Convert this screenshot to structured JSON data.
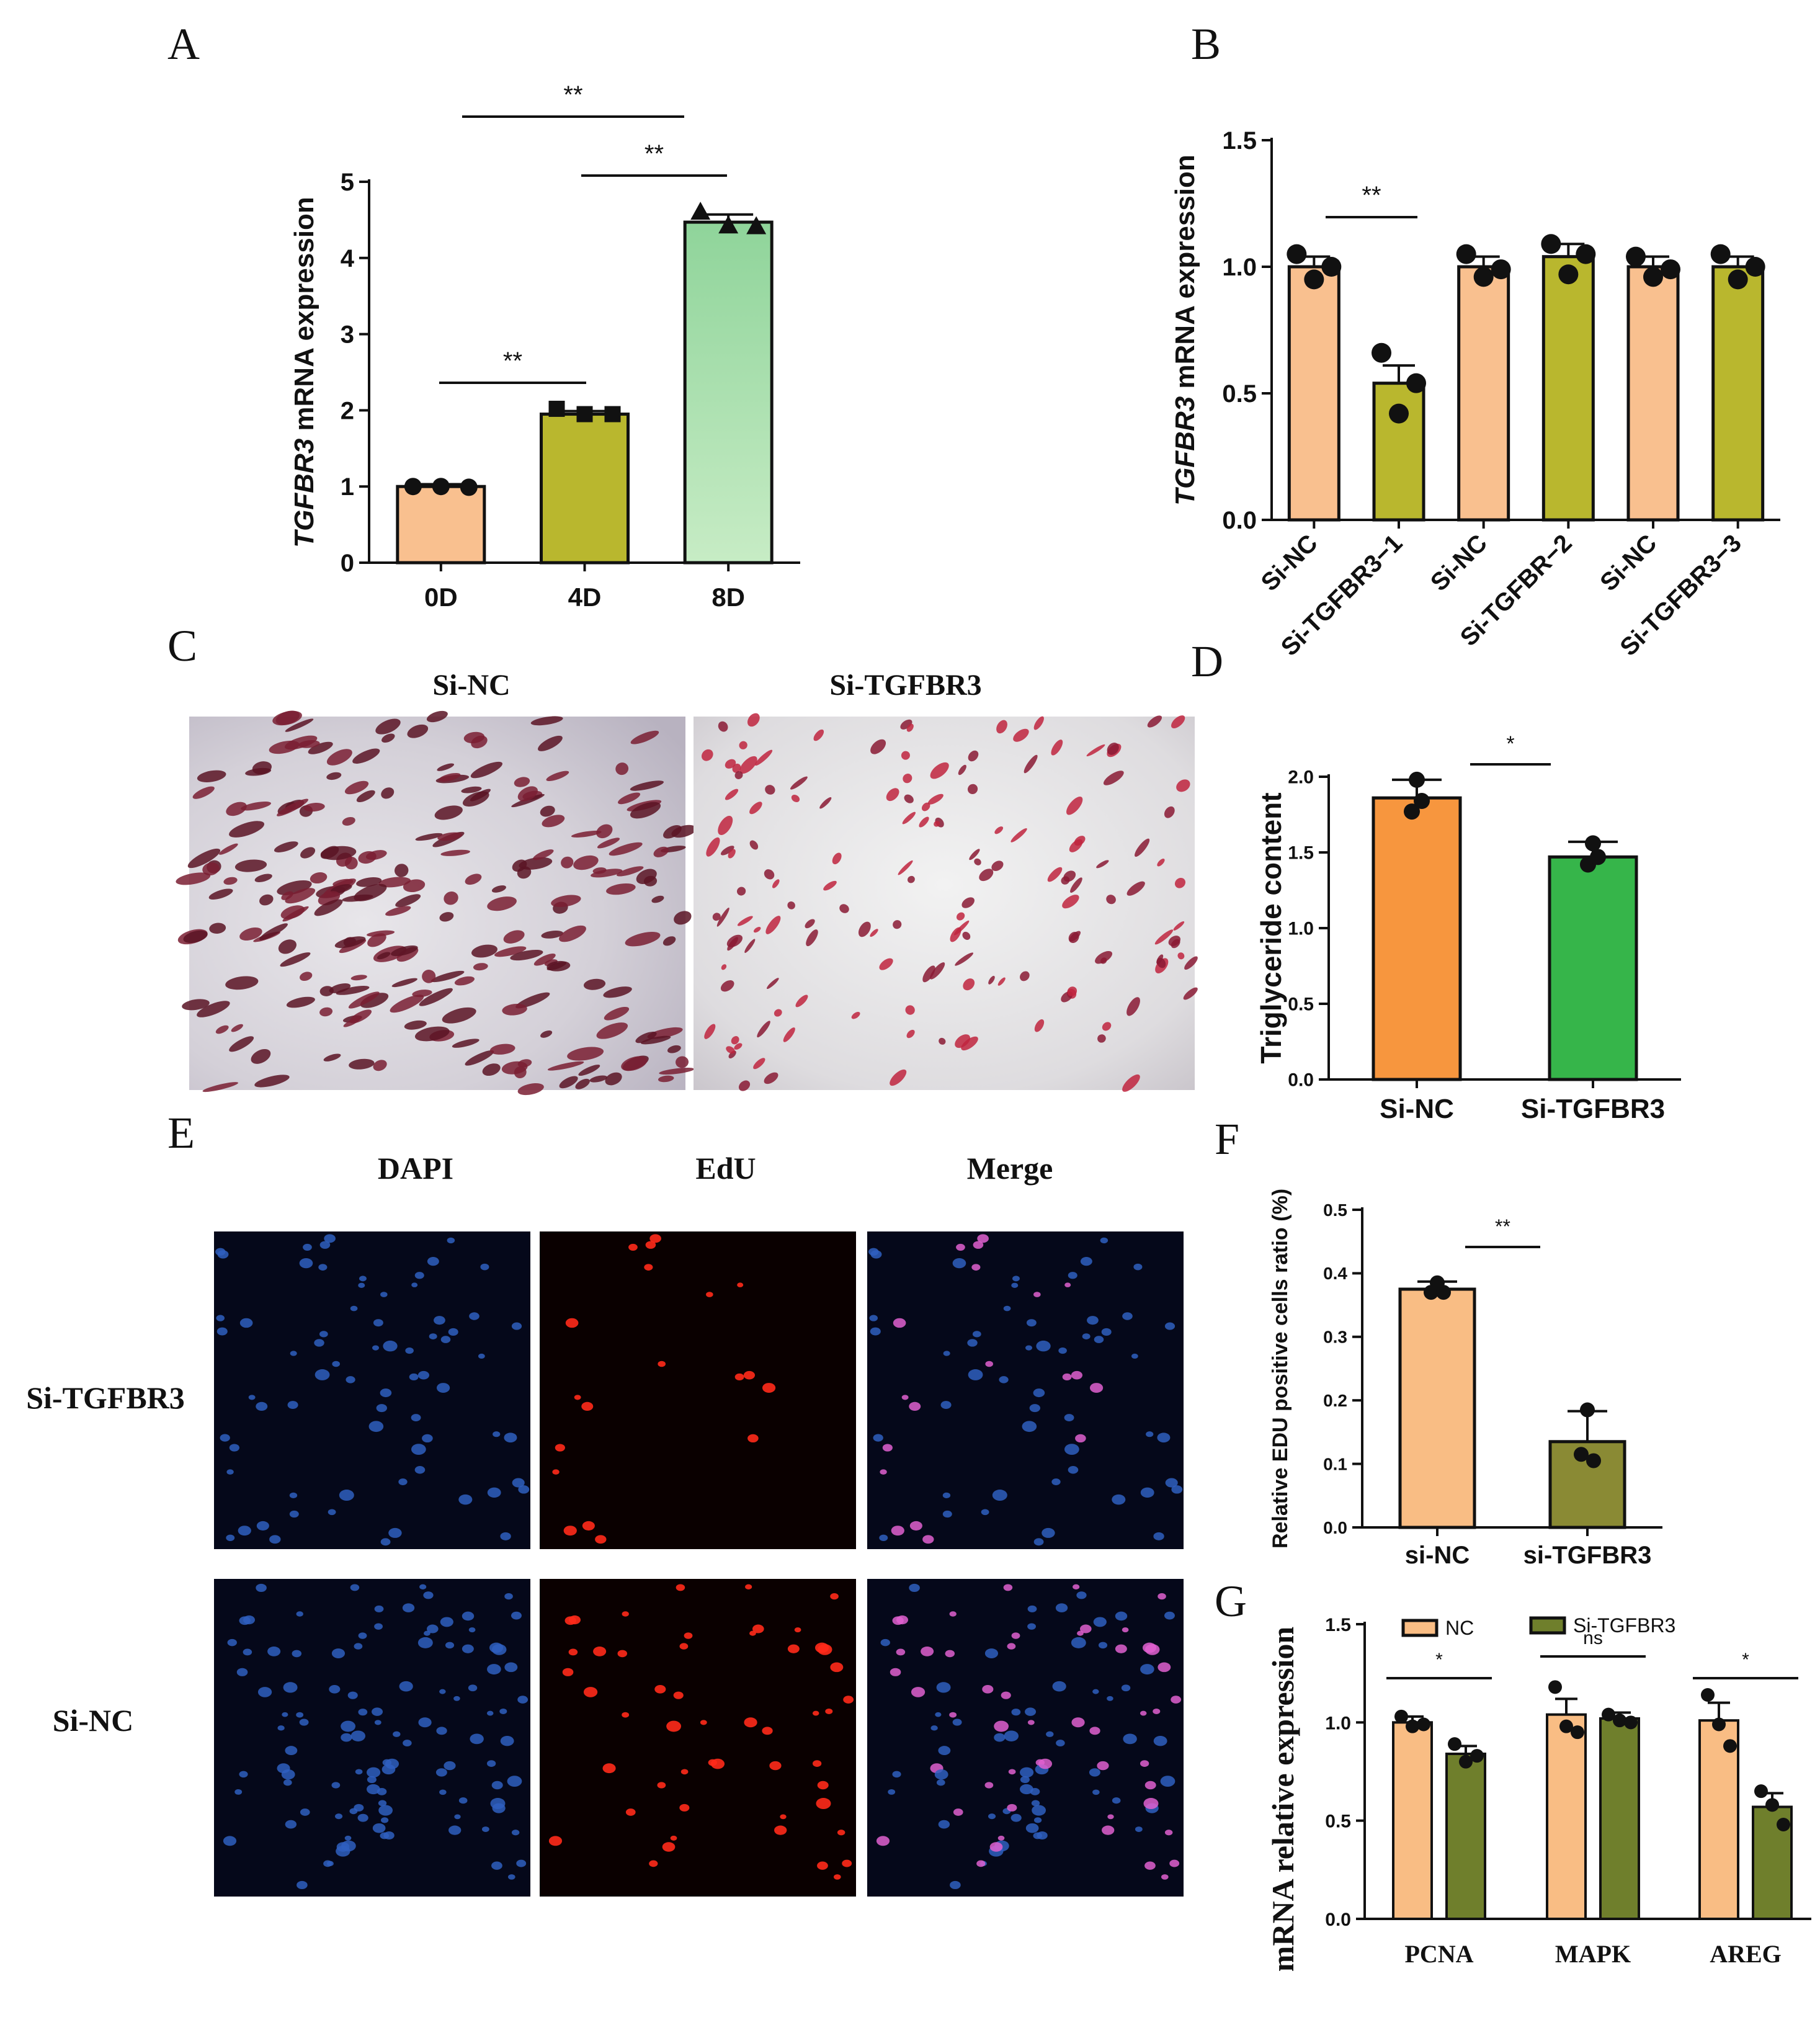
{
  "panel_labels": [
    "A",
    "B",
    "C",
    "D",
    "E",
    "F",
    "G"
  ],
  "panel_c": {
    "col_labels": [
      "Si-NC",
      "Si-TGFBR3"
    ]
  },
  "panel_e": {
    "col_labels": [
      "DAPI",
      "EdU",
      "Merge"
    ],
    "row_labels": [
      "Si-TGFBR3",
      "Si-NC"
    ]
  },
  "chart_data": [
    {
      "panel": "A",
      "type": "bar",
      "ylabel_italic": "TGFBR3",
      "ylabel_rest": " mRNA expression",
      "categories": [
        "0D",
        "4D",
        "8D"
      ],
      "values": [
        1.0,
        1.95,
        4.47
      ],
      "errors": [
        0.03,
        0.04,
        0.1
      ],
      "points": [
        [
          1.0,
          1.0,
          0.99
        ],
        [
          2.02,
          1.95,
          1.95
        ],
        [
          4.6,
          4.42,
          4.41
        ]
      ],
      "colors": [
        "#f9c08f",
        "#b9b72e",
        "#a7dca6"
      ],
      "ylim": [
        0,
        5
      ],
      "yticks": [
        "0",
        "1",
        "2",
        "3",
        "4",
        "5"
      ],
      "significance": [
        {
          "from": 0,
          "to": 1,
          "label": "**"
        },
        {
          "from": 1,
          "to": 2,
          "label": "**"
        },
        {
          "from": 0,
          "to": 2,
          "label": "**"
        }
      ]
    },
    {
      "panel": "B",
      "type": "bar",
      "ylabel_italic": "TGFBR3",
      "ylabel_rest": " mRNA expression",
      "categories": [
        "Si-NC",
        "Si-TGFBR3−1",
        "Si-NC",
        "Si-TGFBR−2",
        "Si-NC",
        "Si-TGFBR3−3"
      ],
      "values": [
        1.0,
        0.54,
        1.0,
        1.04,
        1.0,
        1.0
      ],
      "errors": [
        0.04,
        0.07,
        0.04,
        0.05,
        0.04,
        0.04
      ],
      "points": [
        [
          1.05,
          0.95,
          1.0
        ],
        [
          0.66,
          0.42,
          0.54
        ],
        [
          1.05,
          0.96,
          0.99
        ],
        [
          1.09,
          0.97,
          1.05
        ],
        [
          1.04,
          0.96,
          0.99
        ],
        [
          1.05,
          0.95,
          1.0
        ]
      ],
      "colors": [
        "#f9c08f",
        "#b9b72e",
        "#f9c08f",
        "#b9b72e",
        "#f9c08f",
        "#b9b72e"
      ],
      "ylim": [
        0,
        1.5
      ],
      "yticks": [
        "0.0",
        "0.5",
        "1.0",
        "1.5"
      ],
      "significance": [
        {
          "from": 0,
          "to": 1,
          "label": "**"
        }
      ]
    },
    {
      "panel": "D",
      "type": "bar",
      "ylabel": "Triglyceride content",
      "categories": [
        "Si-NC",
        "Si-TGFBR3"
      ],
      "values": [
        1.86,
        1.47
      ],
      "errors": [
        0.12,
        0.1
      ],
      "points": [
        [
          1.98,
          1.77,
          1.84
        ],
        [
          1.56,
          1.42,
          1.47
        ]
      ],
      "colors": [
        "#f7963e",
        "#36b54a"
      ],
      "ylim": [
        0,
        2.0
      ],
      "yticks": [
        "0.0",
        "0.5",
        "1.0",
        "1.5",
        "2.0"
      ],
      "significance": [
        {
          "from": 0,
          "to": 1,
          "label": "*"
        }
      ]
    },
    {
      "panel": "F",
      "type": "bar",
      "ylabel": "Relative EDU positive cells ratio (%)",
      "categories": [
        "si-NC",
        "si-TGFBR3"
      ],
      "values": [
        0.375,
        0.135
      ],
      "errors": [
        0.012,
        0.048
      ],
      "points": [
        [
          0.385,
          0.37,
          0.37
        ],
        [
          0.185,
          0.115,
          0.105
        ]
      ],
      "colors": [
        "#f9bd84",
        "#8a8a34"
      ],
      "ylim": [
        0,
        0.5
      ],
      "yticks": [
        "0.0",
        "0.1",
        "0.2",
        "0.3",
        "0.4",
        "0.5"
      ],
      "significance": [
        {
          "from": 0,
          "to": 1,
          "label": "**"
        }
      ]
    },
    {
      "panel": "G",
      "type": "bar",
      "ylabel": "mRNA relative expression",
      "categories": [
        "PCNA",
        "MAPK",
        "AREG"
      ],
      "series": [
        {
          "name": "NC",
          "color": "#f9bd84",
          "values": [
            1.0,
            1.04,
            1.01
          ],
          "errors": [
            0.03,
            0.08,
            0.09
          ],
          "points": [
            [
              1.03,
              0.98,
              0.99
            ],
            [
              1.18,
              0.98,
              0.95
            ],
            [
              1.14,
              0.99,
              0.88
            ]
          ]
        },
        {
          "name": "Si-TGFBR3",
          "color": "#6f7f2c",
          "values": [
            0.84,
            1.02,
            0.57
          ],
          "errors": [
            0.04,
            0.03,
            0.07
          ],
          "points": [
            [
              0.89,
              0.8,
              0.83
            ],
            [
              1.04,
              1.01,
              1.0
            ],
            [
              0.65,
              0.58,
              0.48
            ]
          ]
        }
      ],
      "ylim": [
        0,
        1.5
      ],
      "yticks": [
        "0.0",
        "0.5",
        "1.0",
        "1.5"
      ],
      "significance": [
        "*",
        "ns",
        "*"
      ]
    }
  ]
}
